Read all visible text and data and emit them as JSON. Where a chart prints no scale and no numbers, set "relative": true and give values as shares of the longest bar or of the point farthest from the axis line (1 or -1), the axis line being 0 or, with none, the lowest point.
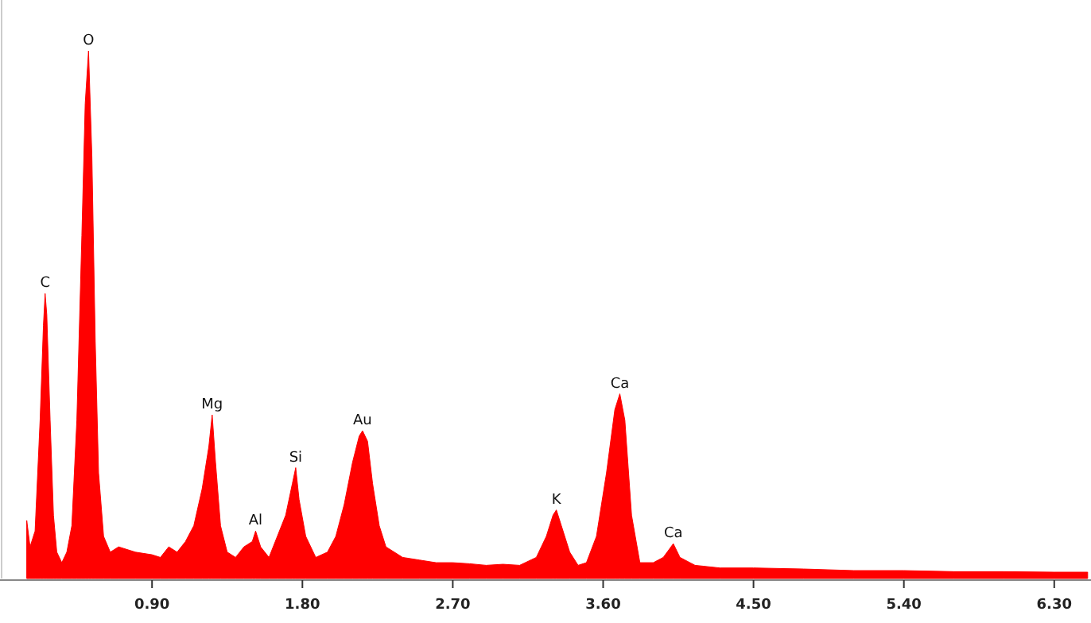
{
  "chart_data": {
    "type": "area",
    "relative": true,
    "color": "#ff0000",
    "xlim": [
      -0.01,
      6.52
    ],
    "xticks": [
      {
        "value": 0.9,
        "label": "0.90"
      },
      {
        "value": 1.8,
        "label": "1.80"
      },
      {
        "value": 2.7,
        "label": "2.70"
      },
      {
        "value": 3.6,
        "label": "3.60"
      },
      {
        "value": 4.5,
        "label": "4.50"
      },
      {
        "value": 5.4,
        "label": "5.40"
      },
      {
        "value": 6.3,
        "label": "6.30"
      }
    ],
    "x": [
      0.15,
      0.17,
      0.2,
      0.23,
      0.25,
      0.26,
      0.27,
      0.29,
      0.31,
      0.33,
      0.36,
      0.39,
      0.42,
      0.45,
      0.48,
      0.5,
      0.52,
      0.54,
      0.56,
      0.58,
      0.61,
      0.65,
      0.7,
      0.8,
      0.9,
      0.95,
      1.0,
      1.05,
      1.1,
      1.15,
      1.2,
      1.24,
      1.26,
      1.28,
      1.31,
      1.35,
      1.4,
      1.45,
      1.5,
      1.52,
      1.55,
      1.6,
      1.65,
      1.7,
      1.74,
      1.76,
      1.78,
      1.82,
      1.88,
      1.95,
      2.0,
      2.05,
      2.1,
      2.14,
      2.16,
      2.19,
      2.22,
      2.26,
      2.3,
      2.4,
      2.5,
      2.6,
      2.7,
      2.8,
      2.9,
      3.0,
      3.1,
      3.2,
      3.26,
      3.3,
      3.32,
      3.35,
      3.4,
      3.45,
      3.5,
      3.56,
      3.62,
      3.67,
      3.7,
      3.73,
      3.77,
      3.82,
      3.9,
      3.96,
      4.02,
      4.06,
      4.15,
      4.3,
      4.5,
      4.8,
      5.1,
      5.4,
      5.7,
      6.0,
      6.3,
      6.5
    ],
    "values": [
      0.11,
      0.06,
      0.09,
      0.3,
      0.48,
      0.54,
      0.5,
      0.3,
      0.12,
      0.05,
      0.03,
      0.05,
      0.1,
      0.3,
      0.65,
      0.9,
      1.0,
      0.8,
      0.45,
      0.2,
      0.08,
      0.05,
      0.06,
      0.05,
      0.045,
      0.04,
      0.06,
      0.05,
      0.07,
      0.1,
      0.17,
      0.25,
      0.31,
      0.22,
      0.1,
      0.05,
      0.04,
      0.06,
      0.07,
      0.09,
      0.06,
      0.04,
      0.08,
      0.12,
      0.18,
      0.21,
      0.15,
      0.08,
      0.04,
      0.05,
      0.08,
      0.14,
      0.22,
      0.27,
      0.28,
      0.26,
      0.18,
      0.1,
      0.06,
      0.04,
      0.035,
      0.03,
      0.03,
      0.028,
      0.025,
      0.027,
      0.025,
      0.04,
      0.08,
      0.12,
      0.13,
      0.1,
      0.05,
      0.025,
      0.03,
      0.08,
      0.2,
      0.32,
      0.35,
      0.3,
      0.12,
      0.03,
      0.03,
      0.04,
      0.066,
      0.04,
      0.025,
      0.02,
      0.02,
      0.018,
      0.015,
      0.015,
      0.013,
      0.013,
      0.012,
      0.012
    ],
    "annotations": [
      {
        "text": "C",
        "x": 0.26,
        "y": 0.54
      },
      {
        "text": "O",
        "x": 0.52,
        "y": 1.0
      },
      {
        "text": "Mg",
        "x": 1.26,
        "y": 0.31
      },
      {
        "text": "Al",
        "x": 1.52,
        "y": 0.09
      },
      {
        "text": "Si",
        "x": 1.76,
        "y": 0.21
      },
      {
        "text": "Au",
        "x": 2.16,
        "y": 0.28
      },
      {
        "text": "K",
        "x": 3.32,
        "y": 0.13
      },
      {
        "text": "Ca",
        "x": 3.7,
        "y": 0.35
      },
      {
        "text": "Ca",
        "x": 4.02,
        "y": 0.066
      }
    ]
  }
}
